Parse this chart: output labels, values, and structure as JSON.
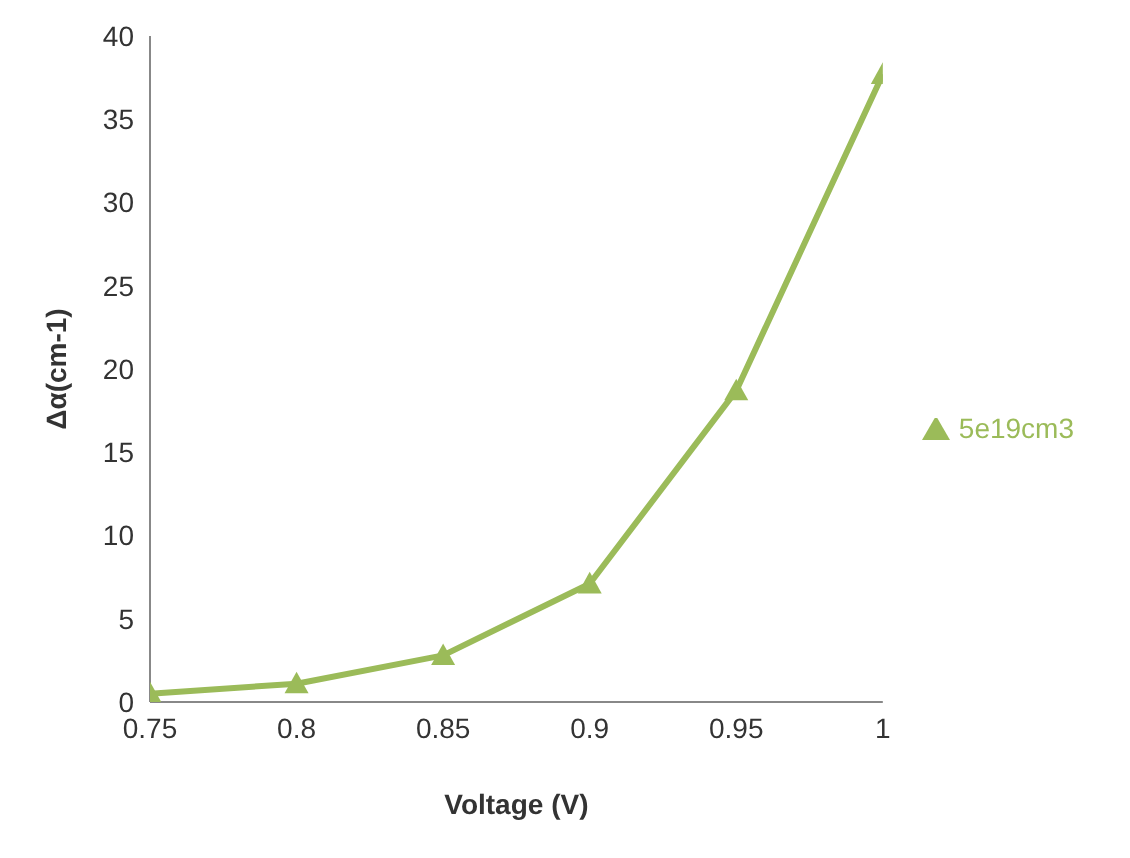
{
  "chart_data": {
    "type": "line",
    "xlabel": "Voltage (V)",
    "ylabel": "Δα(cm-1)",
    "x": [
      0.75,
      0.8,
      0.85,
      0.9,
      0.95,
      1
    ],
    "series": [
      {
        "name": "5e19cm3",
        "color": "#9bbb59",
        "values": [
          0.5,
          1.1,
          2.8,
          7.1,
          18.7,
          37.7
        ]
      }
    ],
    "xlim": [
      0.75,
      1
    ],
    "xticks": [
      0.75,
      0.8,
      0.85,
      0.9,
      0.95,
      1
    ],
    "ylim": [
      0,
      40
    ],
    "yticks": [
      0,
      5,
      10,
      15,
      20,
      25,
      30,
      35,
      40
    ],
    "grid": false,
    "legend": "right",
    "marker": "triangle",
    "line_style": "solid"
  }
}
